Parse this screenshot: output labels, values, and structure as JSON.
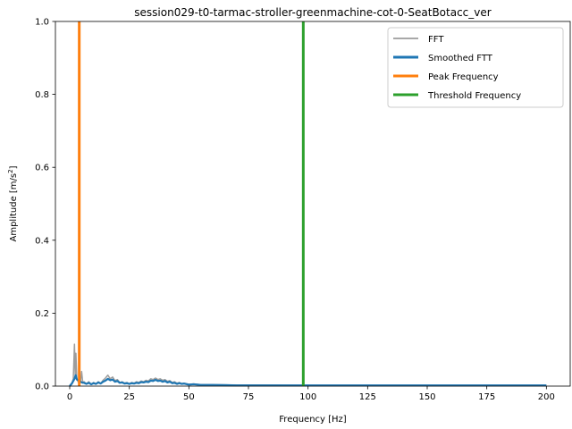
{
  "chart_data": {
    "type": "line",
    "title": "session029-t0-tarmac-stroller-greenmachine-cot-0-SeatBotacc_ver",
    "xlabel": "Frequency [Hz]",
    "ylabel_main": "Amplitude [m/s",
    "ylabel_sup": "2",
    "ylabel_close": "]",
    "xlim": [
      -6,
      210
    ],
    "ylim": [
      0,
      1.0
    ],
    "xticks": [
      0,
      25,
      50,
      75,
      100,
      125,
      150,
      175,
      200
    ],
    "yticks": [
      0.0,
      0.2,
      0.4,
      0.6,
      0.8,
      1.0
    ],
    "xtick_labels": [
      "0",
      "25",
      "50",
      "75",
      "100",
      "125",
      "150",
      "175",
      "200"
    ],
    "ytick_labels": [
      "0.0",
      "0.2",
      "0.4",
      "0.6",
      "0.8",
      "1.0"
    ],
    "grid": false,
    "legend_position": "top-right",
    "series": [
      {
        "name": "FFT",
        "color": "#8c8c8c",
        "points": [
          [
            0.0,
            0.0
          ],
          [
            0.5,
            0.004
          ],
          [
            1.0,
            0.01
          ],
          [
            1.5,
            0.02
          ],
          [
            2.0,
            0.115
          ],
          [
            2.3,
            0.03
          ],
          [
            2.6,
            0.09
          ],
          [
            3.0,
            0.02
          ],
          [
            3.5,
            0.012
          ],
          [
            4.0,
            0.025
          ],
          [
            4.5,
            0.01
          ],
          [
            5.0,
            0.04
          ],
          [
            5.5,
            0.008
          ],
          [
            6.0,
            0.012
          ],
          [
            7.0,
            0.006
          ],
          [
            8.0,
            0.012
          ],
          [
            9.0,
            0.005
          ],
          [
            10.0,
            0.01
          ],
          [
            11.0,
            0.006
          ],
          [
            12.0,
            0.012
          ],
          [
            13.0,
            0.007
          ],
          [
            14.0,
            0.016
          ],
          [
            15.0,
            0.022
          ],
          [
            16.0,
            0.03
          ],
          [
            17.0,
            0.02
          ],
          [
            18.0,
            0.025
          ],
          [
            19.0,
            0.015
          ],
          [
            20.0,
            0.018
          ],
          [
            21.0,
            0.01
          ],
          [
            22.0,
            0.012
          ],
          [
            23.0,
            0.008
          ],
          [
            24.0,
            0.01
          ],
          [
            25.0,
            0.006
          ],
          [
            26.0,
            0.01
          ],
          [
            27.0,
            0.008
          ],
          [
            28.0,
            0.012
          ],
          [
            29.0,
            0.01
          ],
          [
            30.0,
            0.014
          ],
          [
            31.0,
            0.012
          ],
          [
            32.0,
            0.016
          ],
          [
            33.0,
            0.014
          ],
          [
            34.0,
            0.02
          ],
          [
            35.0,
            0.018
          ],
          [
            36.0,
            0.022
          ],
          [
            37.0,
            0.018
          ],
          [
            38.0,
            0.02
          ],
          [
            39.0,
            0.016
          ],
          [
            40.0,
            0.018
          ],
          [
            41.0,
            0.013
          ],
          [
            42.0,
            0.015
          ],
          [
            43.0,
            0.01
          ],
          [
            44.0,
            0.012
          ],
          [
            45.0,
            0.008
          ],
          [
            46.0,
            0.01
          ],
          [
            47.0,
            0.007
          ],
          [
            48.0,
            0.008
          ],
          [
            50.0,
            0.005
          ],
          [
            52.0,
            0.006
          ],
          [
            55.0,
            0.004
          ],
          [
            60.0,
            0.004
          ],
          [
            70.0,
            0.003
          ],
          [
            80.0,
            0.003
          ],
          [
            100.0,
            0.002
          ],
          [
            125.0,
            0.002
          ],
          [
            150.0,
            0.002
          ],
          [
            175.0,
            0.002
          ],
          [
            200.0,
            0.002
          ]
        ]
      },
      {
        "name": "Smoothed FTT",
        "color": "#1f77b4",
        "points": [
          [
            0.0,
            0.0
          ],
          [
            0.5,
            0.004
          ],
          [
            1.0,
            0.008
          ],
          [
            2.0,
            0.02
          ],
          [
            2.5,
            0.03
          ],
          [
            3.0,
            0.018
          ],
          [
            4.0,
            0.015
          ],
          [
            5.0,
            0.01
          ],
          [
            6.0,
            0.009
          ],
          [
            7.0,
            0.006
          ],
          [
            8.0,
            0.009
          ],
          [
            9.0,
            0.005
          ],
          [
            10.0,
            0.008
          ],
          [
            11.0,
            0.006
          ],
          [
            12.0,
            0.01
          ],
          [
            13.0,
            0.007
          ],
          [
            14.0,
            0.012
          ],
          [
            15.0,
            0.015
          ],
          [
            16.0,
            0.02
          ],
          [
            17.0,
            0.016
          ],
          [
            18.0,
            0.018
          ],
          [
            19.0,
            0.012
          ],
          [
            20.0,
            0.014
          ],
          [
            21.0,
            0.009
          ],
          [
            22.0,
            0.01
          ],
          [
            23.0,
            0.007
          ],
          [
            24.0,
            0.008
          ],
          [
            25.0,
            0.006
          ],
          [
            26.0,
            0.008
          ],
          [
            27.0,
            0.007
          ],
          [
            28.0,
            0.009
          ],
          [
            29.0,
            0.008
          ],
          [
            30.0,
            0.011
          ],
          [
            31.0,
            0.01
          ],
          [
            32.0,
            0.012
          ],
          [
            33.0,
            0.011
          ],
          [
            34.0,
            0.015
          ],
          [
            35.0,
            0.014
          ],
          [
            36.0,
            0.017
          ],
          [
            37.0,
            0.014
          ],
          [
            38.0,
            0.015
          ],
          [
            39.0,
            0.012
          ],
          [
            40.0,
            0.014
          ],
          [
            41.0,
            0.01
          ],
          [
            42.0,
            0.012
          ],
          [
            43.0,
            0.008
          ],
          [
            44.0,
            0.009
          ],
          [
            45.0,
            0.006
          ],
          [
            46.0,
            0.008
          ],
          [
            47.0,
            0.006
          ],
          [
            48.0,
            0.007
          ],
          [
            50.0,
            0.004
          ],
          [
            52.0,
            0.005
          ],
          [
            55.0,
            0.003
          ],
          [
            60.0,
            0.003
          ],
          [
            70.0,
            0.002
          ],
          [
            80.0,
            0.002
          ],
          [
            100.0,
            0.002
          ],
          [
            125.0,
            0.002
          ],
          [
            150.0,
            0.002
          ],
          [
            175.0,
            0.002
          ],
          [
            200.0,
            0.002
          ]
        ]
      }
    ],
    "vlines": [
      {
        "name": "Peak Frequency",
        "x": 4.0,
        "color": "#ff7f0e"
      },
      {
        "name": "Threshold Frequency",
        "x": 98.0,
        "color": "#2ca02c"
      }
    ],
    "legend": [
      {
        "label": "FFT",
        "color": "#8c8c8c"
      },
      {
        "label": "Smoothed FTT",
        "color": "#1f77b4"
      },
      {
        "label": "Peak Frequency",
        "color": "#ff7f0e"
      },
      {
        "label": "Threshold Frequency",
        "color": "#2ca02c"
      }
    ]
  }
}
